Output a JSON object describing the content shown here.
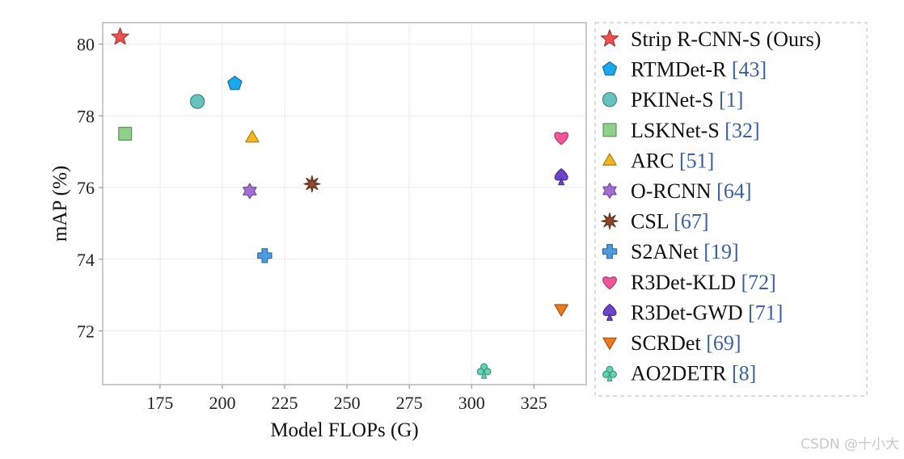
{
  "chart_data": {
    "type": "scatter",
    "xlabel": "Model FLOPs (G)",
    "ylabel": "mAP (%)",
    "xlim": [
      152,
      346
    ],
    "ylim": [
      70.5,
      80.6
    ],
    "xticks": [
      175,
      200,
      225,
      250,
      275,
      300,
      325
    ],
    "yticks": [
      72,
      74,
      76,
      78,
      80
    ],
    "grid": true,
    "legend_position": "right-outside",
    "series": [
      {
        "name": "Strip R-CNN-S (Ours)",
        "ref": "",
        "x": 159,
        "y": 80.2,
        "marker": "star",
        "color": "#f04f4f"
      },
      {
        "name": "RTMDet-R",
        "ref": "[43]",
        "x": 205,
        "y": 78.9,
        "marker": "pentagon",
        "color": "#1aa7ec"
      },
      {
        "name": "PKINet-S",
        "ref": "[1]",
        "x": 190,
        "y": 78.4,
        "marker": "circle",
        "color": "#66c2bd"
      },
      {
        "name": "LSKNet-S",
        "ref": "[32]",
        "x": 161,
        "y": 77.5,
        "marker": "square",
        "color": "#8fd18a"
      },
      {
        "name": "ARC",
        "ref": "[51]",
        "x": 212,
        "y": 77.4,
        "marker": "triangle-up",
        "color": "#f3b61f"
      },
      {
        "name": "O-RCNN",
        "ref": "[64]",
        "x": 211,
        "y": 75.9,
        "marker": "hexagram",
        "color": "#a56cd6"
      },
      {
        "name": "CSL",
        "ref": "[67]",
        "x": 236,
        "y": 76.1,
        "marker": "asterisk",
        "color": "#8b4a2b"
      },
      {
        "name": "S2ANet",
        "ref": "[19]",
        "x": 217,
        "y": 74.1,
        "marker": "cross",
        "color": "#4d9be0"
      },
      {
        "name": "R3Det-KLD",
        "ref": "[72]",
        "x": 336,
        "y": 77.4,
        "marker": "heart",
        "color": "#f0559a"
      },
      {
        "name": "R3Det-GWD",
        "ref": "[71]",
        "x": 336,
        "y": 76.3,
        "marker": "spade",
        "color": "#6b46c8"
      },
      {
        "name": "SCRDet",
        "ref": "[69]",
        "x": 336,
        "y": 72.6,
        "marker": "triangle-down",
        "color": "#ee7a1b"
      },
      {
        "name": "AO2DETR",
        "ref": "[8]",
        "x": 305,
        "y": 70.9,
        "marker": "club",
        "color": "#5fd6b0"
      }
    ]
  },
  "watermark": "CSDN @十小大"
}
